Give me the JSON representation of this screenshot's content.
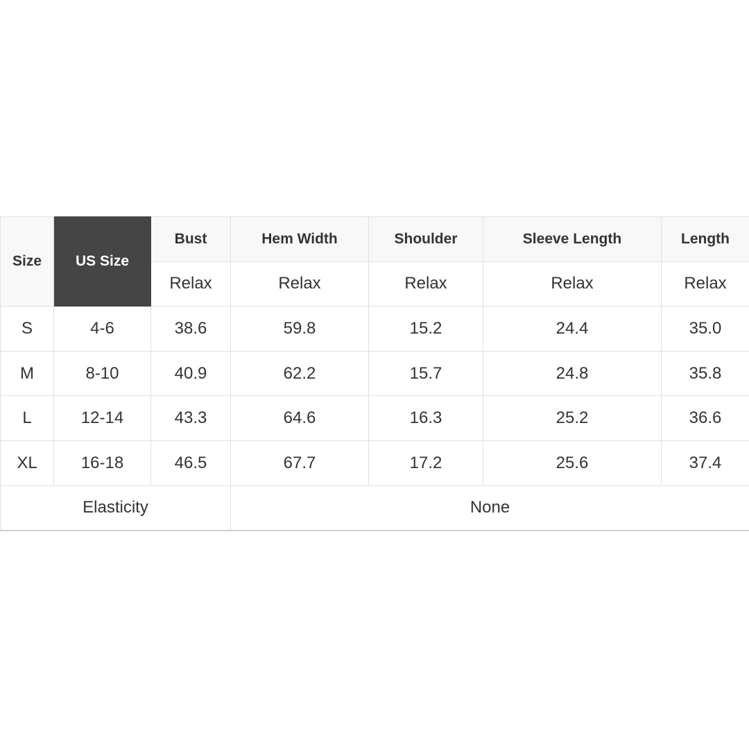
{
  "header": {
    "size": "Size",
    "us_size": "US Size",
    "columns": [
      "Bust",
      "Hem Width",
      "Shoulder",
      "Sleeve Length",
      "Length"
    ],
    "sub": [
      "Relax",
      "Relax",
      "Relax",
      "Relax",
      "Relax"
    ]
  },
  "rows": [
    {
      "size": "S",
      "us": "4-6",
      "values": [
        "38.6",
        "59.8",
        "15.2",
        "24.4",
        "35.0"
      ]
    },
    {
      "size": "M",
      "us": "8-10",
      "values": [
        "40.9",
        "62.2",
        "15.7",
        "24.8",
        "35.8"
      ]
    },
    {
      "size": "L",
      "us": "12-14",
      "values": [
        "43.3",
        "64.6",
        "16.3",
        "25.2",
        "36.6"
      ]
    },
    {
      "size": "XL",
      "us": "16-18",
      "values": [
        "46.5",
        "67.7",
        "17.2",
        "25.6",
        "37.4"
      ]
    }
  ],
  "footer": {
    "label": "Elasticity",
    "value": "None"
  },
  "colors": {
    "us_size_header": "#454545",
    "header_bg": "#f8f8f8",
    "border": "#e0e0e0"
  }
}
